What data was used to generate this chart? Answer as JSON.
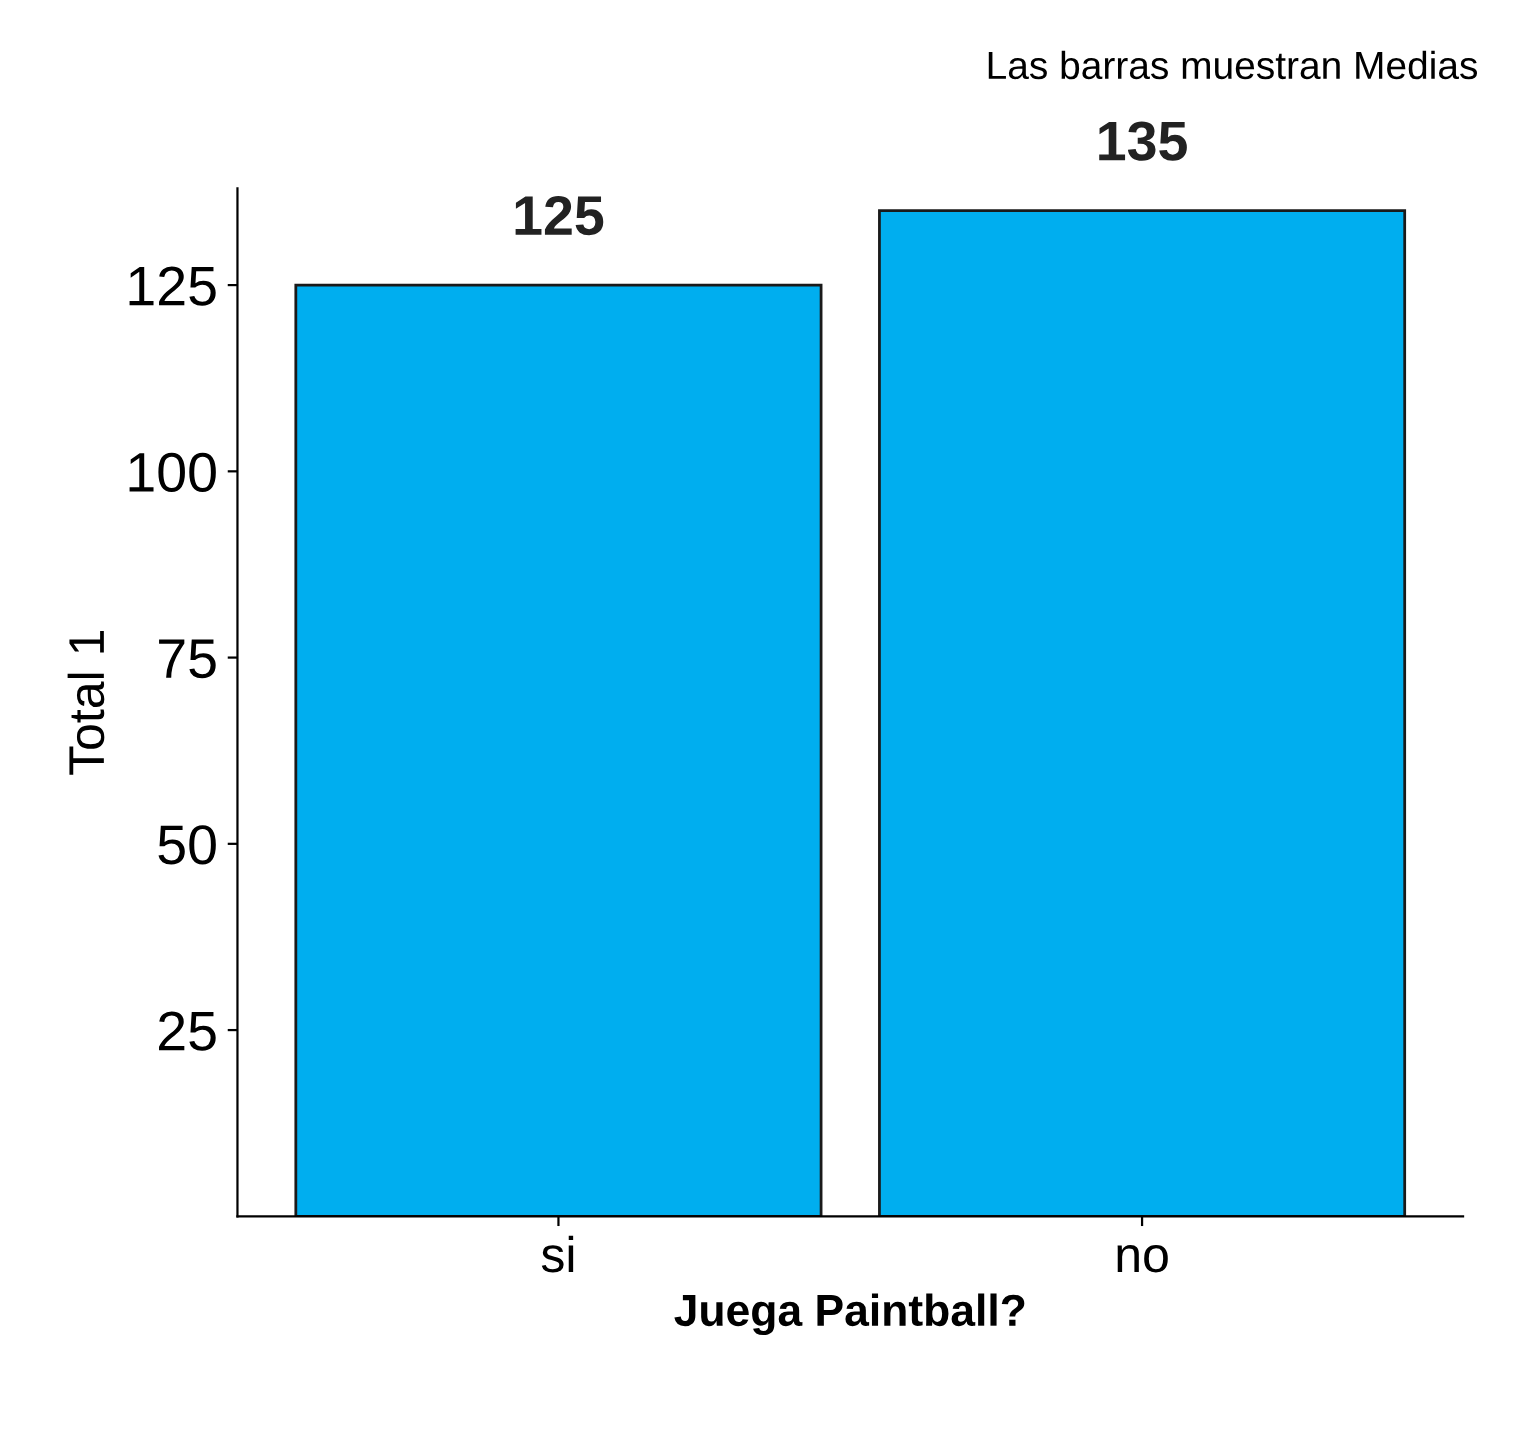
{
  "chart_data": {
    "type": "bar",
    "annotations": [
      "Las barras muestran Medias"
    ],
    "xlabel": "Juega Paintball?",
    "ylabel": "Total 1",
    "categories": [
      "si",
      "no"
    ],
    "values": [
      125,
      135
    ],
    "color": "#00aeef",
    "ylim": [
      0,
      138
    ],
    "yticks": [
      25,
      50,
      75,
      100,
      125
    ],
    "data_labels": true,
    "grid": false
  }
}
